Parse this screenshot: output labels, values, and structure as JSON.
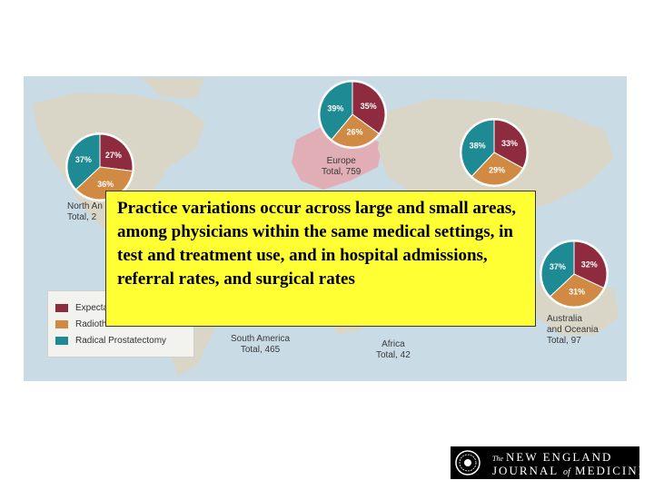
{
  "colors": {
    "ocean": "#c9dbe5",
    "land": "#d9d5c7",
    "highlight_land": "#e1aeb6",
    "expectant": "#8e2b3f",
    "radiotherapy": "#d08a43",
    "prostatectomy": "#1d8a94",
    "callout": "#ffff33"
  },
  "regions": [
    {
      "name": "north-america",
      "label_l1": "North An",
      "label_l2": "Total, 2",
      "slices": [
        {
          "category": "expectant",
          "pct": 27,
          "label": "27%"
        },
        {
          "category": "radiotherapy",
          "pct": 36,
          "label": "36%"
        },
        {
          "category": "prostatectomy",
          "pct": 37,
          "label": "37%"
        }
      ]
    },
    {
      "name": "europe",
      "label_l1": "Europe",
      "label_l2": "Total, 759",
      "slices": [
        {
          "category": "expectant",
          "pct": 35,
          "label": "35%"
        },
        {
          "category": "radiotherapy",
          "pct": 26,
          "label": "26%"
        },
        {
          "category": "prostatectomy",
          "pct": 39,
          "label": "39%"
        }
      ]
    },
    {
      "name": "asia",
      "label_l1": "",
      "label_l2": "",
      "slices": [
        {
          "category": "expectant",
          "pct": 33,
          "label": "33%"
        },
        {
          "category": "radiotherapy",
          "pct": 29,
          "label": "29%"
        },
        {
          "category": "prostatectomy",
          "pct": 38,
          "label": "38%"
        }
      ]
    },
    {
      "name": "australia-oceania",
      "label_l1": "Australia",
      "label_l2": "and Oceania",
      "label_l3": "Total, 97",
      "slices": [
        {
          "category": "expectant",
          "pct": 32,
          "label": "32%"
        },
        {
          "category": "radiotherapy",
          "pct": 31,
          "label": "31%"
        },
        {
          "category": "prostatectomy",
          "pct": 37,
          "label": "37%"
        }
      ]
    },
    {
      "name": "south-america",
      "label_l1": "South America",
      "label_l2": "Total, 465"
    },
    {
      "name": "africa",
      "label_l1": "Africa",
      "label_l2": "Total, 42"
    }
  ],
  "legend": {
    "items": [
      {
        "category": "expectant",
        "label": "Expectar"
      },
      {
        "category": "radiotherapy",
        "label": "Radioth"
      },
      {
        "category": "prostatectomy",
        "label": "Radical Prostatectomy"
      }
    ]
  },
  "callout": {
    "text": "Practice variations occur across large and small areas, among physicians within the same medical settings, in test and treatment use, and in hospital admissions, referral rates, and surgical rates"
  },
  "logo": {
    "line1_prefix": "The",
    "line1": "NEW ENGLAND",
    "line2_a": "JOURNAL",
    "line2_of": "of",
    "line2_b": "MEDICINE"
  }
}
